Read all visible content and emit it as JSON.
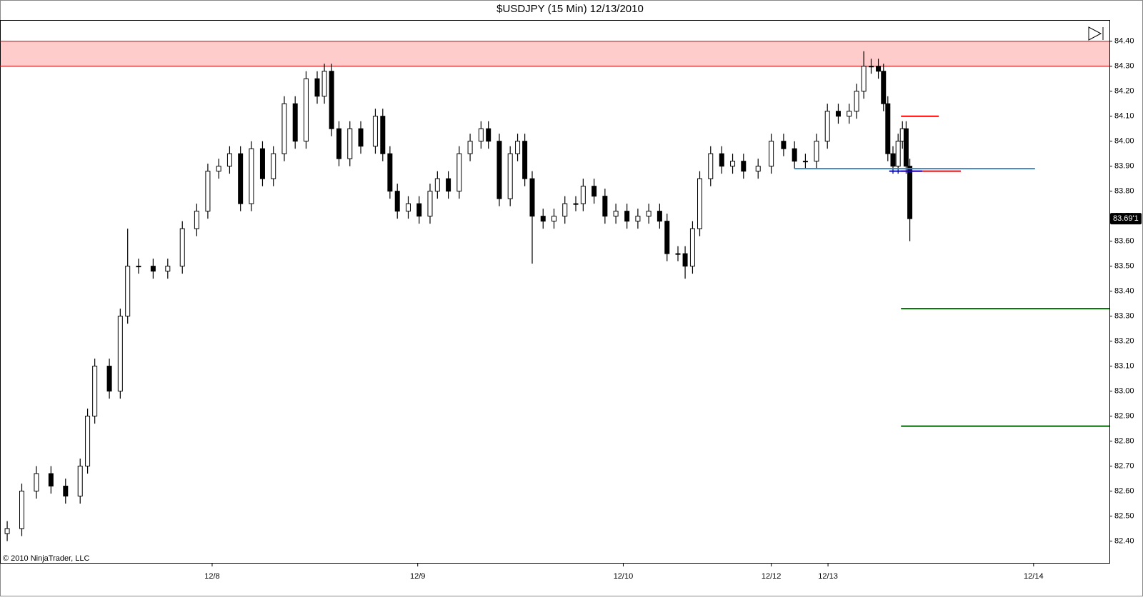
{
  "chart_data": {
    "type": "candlestick",
    "title": "$USDJPY (15 Min)  12/13/2010",
    "copyright": "© 2010 NinjaTrader, LLC",
    "xlim": [
      0,
      5.397
    ],
    "xticks": [
      {
        "value": 1.032,
        "label": "12/8"
      },
      {
        "value": 2.032,
        "label": "12/9"
      },
      {
        "value": 3.032,
        "label": "12/10"
      },
      {
        "value": 3.752,
        "label": "12/12"
      },
      {
        "value": 4.028,
        "label": "12/13"
      },
      {
        "value": 5.028,
        "label": "12/14"
      }
    ],
    "ylim": [
      82.31,
      84.485
    ],
    "yticks": [
      {
        "value": 82.4,
        "label": "82.40"
      },
      {
        "value": 82.5,
        "label": "82.50"
      },
      {
        "value": 82.6,
        "label": "82.60"
      },
      {
        "value": 82.7,
        "label": "82.70"
      },
      {
        "value": 82.8,
        "label": "82.80"
      },
      {
        "value": 82.9,
        "label": "82.90"
      },
      {
        "value": 83.0,
        "label": "83.00"
      },
      {
        "value": 83.1,
        "label": "83.10"
      },
      {
        "value": 83.2,
        "label": "83.20"
      },
      {
        "value": 83.3,
        "label": "83.30"
      },
      {
        "value": 83.4,
        "label": "83.40"
      },
      {
        "value": 83.5,
        "label": "83.50"
      },
      {
        "value": 83.6,
        "label": "83.60"
      },
      {
        "value": 83.7,
        "label": "83.70"
      },
      {
        "value": 83.8,
        "label": "83.80"
      },
      {
        "value": 83.9,
        "label": "83.90"
      },
      {
        "value": 84.0,
        "label": "84.00"
      },
      {
        "value": 84.1,
        "label": "84.10"
      },
      {
        "value": 84.2,
        "label": "84.20"
      },
      {
        "value": 84.3,
        "label": "84.30"
      },
      {
        "value": 84.4,
        "label": "84.40"
      }
    ],
    "up_color": "#ffffff",
    "down_color": "#000000",
    "outline_color": "#000000",
    "x": [
      0.035,
      0.106,
      0.177,
      0.248,
      0.319,
      0.39,
      0.426,
      0.461,
      0.532,
      0.585,
      0.621,
      0.674,
      0.745,
      0.816,
      0.887,
      0.957,
      1.011,
      1.064,
      1.117,
      1.17,
      1.223,
      1.277,
      1.33,
      1.383,
      1.436,
      1.489,
      1.543,
      1.578,
      1.613,
      1.649,
      1.702,
      1.755,
      1.826,
      1.862,
      1.897,
      1.933,
      1.986,
      2.039,
      2.092,
      2.128,
      2.181,
      2.234,
      2.287,
      2.34,
      2.376,
      2.429,
      2.482,
      2.518,
      2.553,
      2.589,
      2.642,
      2.695,
      2.748,
      2.801,
      2.837,
      2.89,
      2.943,
      2.996,
      3.05,
      3.103,
      3.156,
      3.209,
      3.245,
      3.298,
      3.333,
      3.369,
      3.404,
      3.457,
      3.511,
      3.564,
      3.617,
      3.688,
      3.752,
      3.812,
      3.865,
      3.918,
      3.972,
      4.025,
      4.078,
      4.131,
      4.167,
      4.202,
      4.238,
      4.273,
      4.298,
      4.319,
      4.344,
      4.369,
      4.39,
      4.408,
      4.426
    ],
    "open": [
      82.43,
      82.45,
      82.6,
      82.67,
      82.62,
      82.58,
      82.7,
      82.9,
      83.1,
      83.0,
      83.3,
      83.5,
      83.5,
      83.48,
      83.5,
      83.65,
      83.72,
      83.88,
      83.9,
      83.95,
      83.75,
      83.97,
      83.85,
      83.95,
      84.15,
      84.0,
      84.25,
      84.18,
      84.28,
      84.05,
      83.93,
      84.05,
      83.98,
      84.1,
      83.95,
      83.8,
      83.72,
      83.75,
      83.7,
      83.8,
      83.85,
      83.8,
      83.95,
      84.0,
      84.05,
      84.0,
      83.77,
      83.95,
      84.0,
      83.85,
      83.7,
      83.68,
      83.7,
      83.75,
      83.75,
      83.82,
      83.78,
      83.7,
      83.72,
      83.68,
      83.7,
      83.72,
      83.68,
      83.55,
      83.55,
      83.5,
      83.65,
      83.85,
      83.95,
      83.9,
      83.92,
      83.88,
      83.9,
      84.0,
      83.97,
      83.92,
      83.92,
      84.0,
      84.12,
      84.1,
      84.12,
      84.2,
      84.3,
      84.3,
      84.28,
      84.15,
      83.95,
      83.9,
      84.0,
      84.05,
      83.9
    ],
    "high": [
      82.48,
      82.63,
      82.7,
      82.7,
      82.65,
      82.73,
      82.93,
      83.13,
      83.13,
      83.33,
      83.65,
      83.53,
      83.53,
      83.53,
      83.68,
      83.75,
      83.91,
      83.93,
      83.98,
      83.98,
      84.0,
      84.0,
      83.98,
      84.18,
      84.18,
      84.28,
      84.28,
      84.31,
      84.31,
      84.08,
      84.08,
      84.08,
      84.13,
      84.13,
      83.98,
      83.83,
      83.78,
      83.78,
      83.83,
      83.88,
      83.88,
      83.98,
      84.03,
      84.08,
      84.08,
      84.03,
      83.98,
      84.03,
      84.03,
      83.88,
      83.73,
      83.73,
      83.78,
      83.78,
      83.85,
      83.85,
      83.81,
      83.75,
      83.75,
      83.73,
      83.75,
      83.75,
      83.71,
      83.58,
      83.58,
      83.68,
      83.88,
      83.98,
      83.98,
      83.95,
      83.95,
      83.93,
      84.03,
      84.03,
      84.0,
      83.95,
      84.03,
      84.15,
      84.15,
      84.15,
      84.23,
      84.36,
      84.33,
      84.33,
      84.31,
      84.18,
      83.98,
      84.03,
      84.08,
      84.08,
      83.93
    ],
    "low": [
      82.4,
      82.42,
      82.57,
      82.59,
      82.55,
      82.55,
      82.67,
      82.87,
      82.97,
      82.97,
      83.27,
      83.47,
      83.45,
      83.45,
      83.47,
      83.62,
      83.69,
      83.85,
      83.87,
      83.72,
      83.72,
      83.82,
      83.82,
      83.92,
      83.97,
      83.97,
      84.15,
      84.15,
      84.02,
      83.9,
      83.9,
      83.95,
      83.95,
      83.92,
      83.77,
      83.69,
      83.69,
      83.67,
      83.67,
      83.77,
      83.77,
      83.77,
      83.92,
      83.97,
      83.97,
      83.74,
      83.74,
      83.92,
      83.82,
      83.51,
      83.65,
      83.65,
      83.67,
      83.72,
      83.72,
      83.75,
      83.67,
      83.67,
      83.65,
      83.65,
      83.67,
      83.65,
      83.52,
      83.52,
      83.45,
      83.47,
      83.62,
      83.82,
      83.87,
      83.87,
      83.85,
      83.85,
      83.87,
      83.94,
      83.89,
      83.89,
      83.89,
      83.97,
      84.07,
      84.07,
      84.09,
      84.17,
      84.27,
      84.25,
      84.12,
      83.92,
      83.87,
      83.87,
      83.97,
      83.87,
      83.6
    ],
    "close": [
      82.45,
      82.6,
      82.67,
      82.62,
      82.58,
      82.7,
      82.9,
      83.1,
      83.0,
      83.3,
      83.5,
      83.5,
      83.48,
      83.5,
      83.65,
      83.72,
      83.88,
      83.9,
      83.95,
      83.75,
      83.97,
      83.85,
      83.95,
      84.15,
      84.0,
      84.25,
      84.18,
      84.28,
      84.05,
      83.93,
      84.05,
      83.98,
      84.1,
      83.95,
      83.8,
      83.72,
      83.75,
      83.7,
      83.8,
      83.85,
      83.8,
      83.95,
      84.0,
      84.05,
      84.0,
      83.77,
      83.95,
      84.0,
      83.85,
      83.7,
      83.68,
      83.7,
      83.75,
      83.75,
      83.82,
      83.78,
      83.7,
      83.72,
      83.68,
      83.7,
      83.72,
      83.68,
      83.55,
      83.55,
      83.5,
      83.65,
      83.85,
      83.95,
      83.9,
      83.92,
      83.88,
      83.9,
      84.0,
      83.97,
      83.92,
      83.92,
      84.0,
      84.12,
      84.1,
      84.12,
      84.2,
      84.3,
      84.3,
      84.28,
      84.15,
      83.95,
      83.9,
      84.0,
      84.05,
      83.9,
      83.69
    ],
    "zone": {
      "from": 84.3,
      "to": 84.4,
      "color": "#ff9999"
    },
    "levels": [
      {
        "value": 83.89,
        "x": [
          3.865,
          5.035
        ],
        "color": "#4682b4"
      },
      {
        "value": 84.1,
        "x": [
          4.383,
          4.567
        ],
        "color": "#ff0000"
      },
      {
        "value": 83.88,
        "x": [
          4.383,
          4.674
        ],
        "color": "#ff0000"
      },
      {
        "value": 83.88,
        "x": [
          4.326,
          4.486
        ],
        "color": "#0000ff"
      },
      {
        "value": 83.33,
        "x": [
          4.383,
          5.397
        ],
        "color": "#006400"
      },
      {
        "value": 82.86,
        "x": [
          4.383,
          5.397
        ],
        "color": "#006400"
      }
    ],
    "last_price": {
      "value": 83.69,
      "label": "83.69'1"
    }
  }
}
